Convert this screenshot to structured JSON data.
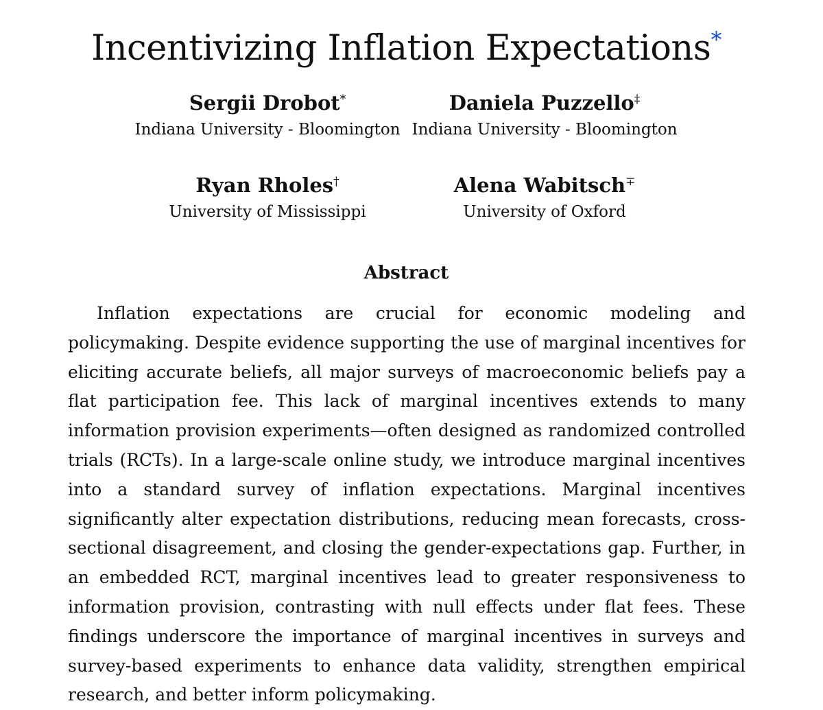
{
  "paper": {
    "title": "Incentivizing Inflation Expectations",
    "title_mark": "*",
    "authors": [
      {
        "name": "Sergii Drobot",
        "mark": "*",
        "affiliation": "Indiana University - Bloomington"
      },
      {
        "name": "Daniela Puzzello",
        "mark": "‡",
        "affiliation": "Indiana University - Bloomington"
      },
      {
        "name": "Ryan Rholes",
        "mark": "†",
        "affiliation": "University of Mississippi"
      },
      {
        "name": "Alena Wabitsch",
        "mark": "∓",
        "affiliation": "University of Oxford"
      }
    ],
    "abstract_heading": "Abstract",
    "abstract_text": "Inflation expectations are crucial for economic modeling and policymaking. Despite evidence supporting the use of marginal incentives for eliciting accurate beliefs, all major surveys of macroeconomic beliefs pay a flat participation fee. This lack of marginal incentives extends to many information provision experiments—often designed as randomized controlled trials (RCTs). In a large-scale online study, we introduce marginal incentives into a standard survey of inflation expec­tations. Marginal incentives significantly alter expectation distributions, reducing mean forecasts, cross-sectional disagreement, and closing the gender-expectations gap. Further, in an embedded RCT, marginal incentives lead to greater responsive­ness to information provision, contrasting with null effects under flat fees. These findings underscore the importance of marginal incentives in surveys and survey-based experiments to enhance data validity, strengthen empirical research, and better inform policymaking."
  }
}
